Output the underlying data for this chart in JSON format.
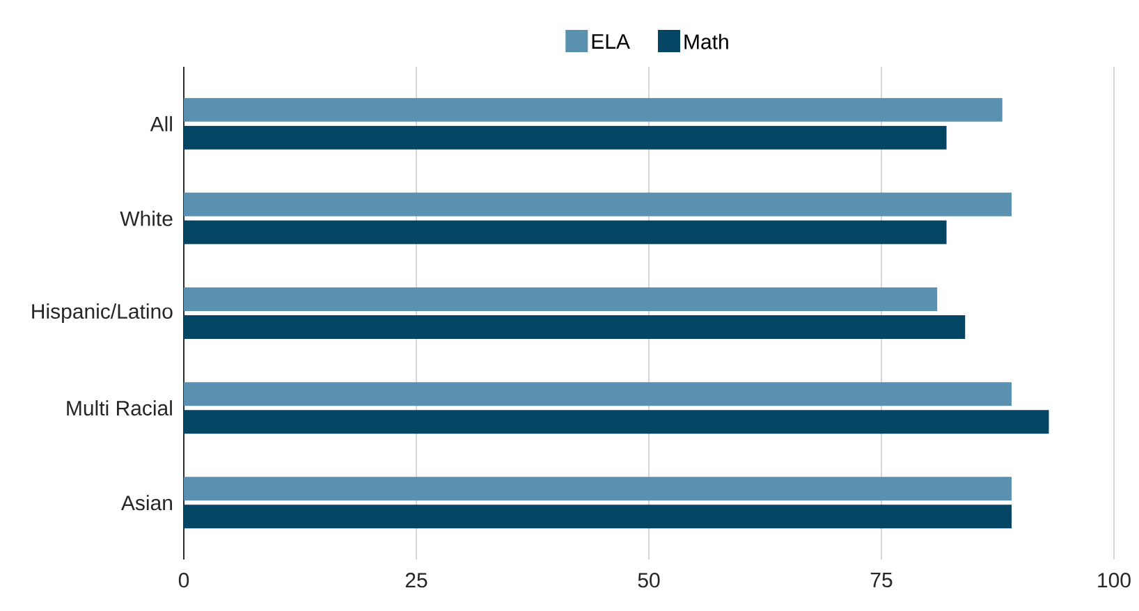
{
  "chart_data": {
    "type": "bar",
    "orientation": "horizontal",
    "categories": [
      "All",
      "White",
      "Hispanic/Latino",
      "Multi Racial",
      "Asian"
    ],
    "series": [
      {
        "name": "ELA",
        "color": "#5a91b0",
        "values": [
          88,
          89,
          81,
          89,
          89
        ]
      },
      {
        "name": "Math",
        "color": "#034563",
        "values": [
          82,
          82,
          84,
          93,
          89
        ]
      }
    ],
    "xlim": [
      0,
      100
    ],
    "xticks": [
      0,
      25,
      50,
      75,
      100
    ],
    "grid": "x",
    "legend": "top"
  }
}
